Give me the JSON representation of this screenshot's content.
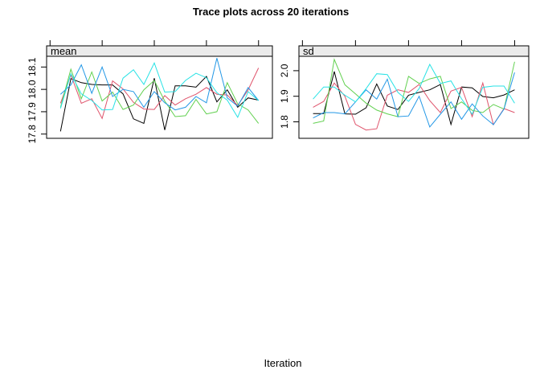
{
  "title": "Trace plots across 20 iterations",
  "xlabel": "Iteration",
  "style": {
    "background": "#ffffff",
    "strip_bg": "#ebebeb",
    "panel_border": "#000000",
    "tick_color": "#000000"
  },
  "chart_data": [
    {
      "type": "line",
      "panel_label": "mean",
      "x": [
        1,
        2,
        3,
        4,
        5,
        6,
        7,
        8,
        9,
        10,
        11,
        12,
        13,
        14,
        15,
        16,
        17,
        18,
        19,
        20
      ],
      "xlim": [
        -0.33,
        21.33
      ],
      "xticks_top": [
        0,
        5,
        10,
        15,
        20
      ],
      "ylim": [
        17.781,
        18.148
      ],
      "ytick_values": [
        17.8,
        17.9,
        18.0,
        18.1
      ],
      "ytick_labels": [
        "17.8",
        "17.9",
        "18.0",
        "18.1"
      ],
      "grid": false,
      "legend": "none",
      "series": [
        {
          "name": "trace-1-black",
          "color": "#000000",
          "values": [
            17.812,
            18.048,
            18.03,
            18.022,
            18.02,
            18.02,
            17.98,
            17.868,
            17.848,
            18.05,
            17.818,
            18.016,
            18.016,
            18.01,
            18.058,
            17.944,
            17.998,
            17.92,
            17.962,
            17.952
          ]
        },
        {
          "name": "trace-2-red",
          "color": "#DF536B",
          "values": [
            17.938,
            18.065,
            17.938,
            17.958,
            17.87,
            18.038,
            18.002,
            17.942,
            17.912,
            17.91,
            17.972,
            17.93,
            17.958,
            17.978,
            18.008,
            17.978,
            17.975,
            17.928,
            17.998,
            18.096
          ]
        },
        {
          "name": "trace-3-green",
          "color": "#61D04F",
          "values": [
            17.92,
            18.09,
            17.958,
            18.078,
            17.948,
            17.988,
            17.91,
            17.93,
            17.998,
            18.04,
            17.948,
            17.878,
            17.882,
            17.955,
            17.89,
            17.9,
            18.03,
            17.935,
            17.908,
            17.848
          ]
        },
        {
          "name": "trace-4-blue",
          "color": "#2297E6",
          "values": [
            17.978,
            18.02,
            18.11,
            17.982,
            18.1,
            17.968,
            18.0,
            17.99,
            17.92,
            17.99,
            17.94,
            17.908,
            17.92,
            17.968,
            17.94,
            18.14,
            17.962,
            17.925,
            18.008,
            17.95
          ]
        },
        {
          "name": "trace-5-cyan",
          "color": "#28E2E5",
          "values": [
            17.915,
            18.07,
            17.98,
            17.95,
            17.908,
            17.91,
            18.05,
            18.088,
            18.022,
            18.118,
            17.988,
            17.99,
            18.04,
            18.072,
            18.052,
            17.985,
            17.952,
            17.875,
            17.99,
            17.95
          ]
        }
      ]
    },
    {
      "type": "line",
      "panel_label": "sd",
      "x": [
        1,
        2,
        3,
        4,
        5,
        6,
        7,
        8,
        9,
        10,
        11,
        12,
        13,
        14,
        15,
        16,
        17,
        18,
        19,
        20
      ],
      "xlim": [
        -0.33,
        21.33
      ],
      "xticks_top": [
        0,
        5,
        10,
        15,
        20
      ],
      "ylim": [
        1.7355,
        2.0563
      ],
      "ytick_values": [
        1.8,
        1.9,
        2.0
      ],
      "ytick_labels": [
        "1.8",
        "1.9",
        "2.0"
      ],
      "grid": false,
      "legend": "none",
      "series": [
        {
          "name": "trace-1-black",
          "color": "#000000",
          "values": [
            1.832,
            1.832,
            1.997,
            1.831,
            1.83,
            1.855,
            1.948,
            1.862,
            1.848,
            1.904,
            1.915,
            1.925,
            1.946,
            1.79,
            1.936,
            1.933,
            1.899,
            1.894,
            1.905,
            1.925
          ]
        },
        {
          "name": "trace-2-red",
          "color": "#DF536B",
          "values": [
            1.857,
            1.88,
            1.952,
            1.9,
            1.79,
            1.768,
            1.773,
            1.904,
            1.925,
            1.915,
            1.946,
            1.883,
            1.836,
            1.92,
            1.935,
            1.82,
            1.952,
            1.789,
            1.852,
            1.836
          ]
        },
        {
          "name": "trace-3-green",
          "color": "#61D04F",
          "values": [
            1.794,
            1.803,
            2.044,
            1.945,
            1.909,
            1.873,
            1.846,
            1.831,
            1.82,
            1.978,
            1.95,
            1.968,
            1.978,
            1.852,
            1.878,
            1.845,
            1.836,
            1.868,
            1.85,
            2.035
          ]
        },
        {
          "name": "trace-4-blue",
          "color": "#2297E6",
          "values": [
            1.815,
            1.836,
            1.836,
            1.831,
            1.878,
            1.925,
            1.889,
            1.967,
            1.82,
            1.823,
            1.9,
            1.78,
            1.83,
            1.878,
            1.81,
            1.87,
            1.823,
            1.789,
            1.85,
            1.993
          ]
        },
        {
          "name": "trace-5-cyan",
          "color": "#28E2E5",
          "values": [
            1.889,
            1.936,
            1.936,
            1.904,
            1.878,
            1.93,
            1.988,
            1.985,
            1.915,
            1.88,
            1.93,
            2.025,
            1.95,
            1.96,
            1.89,
            1.83,
            1.935,
            1.94,
            1.94,
            1.873
          ]
        }
      ]
    }
  ]
}
